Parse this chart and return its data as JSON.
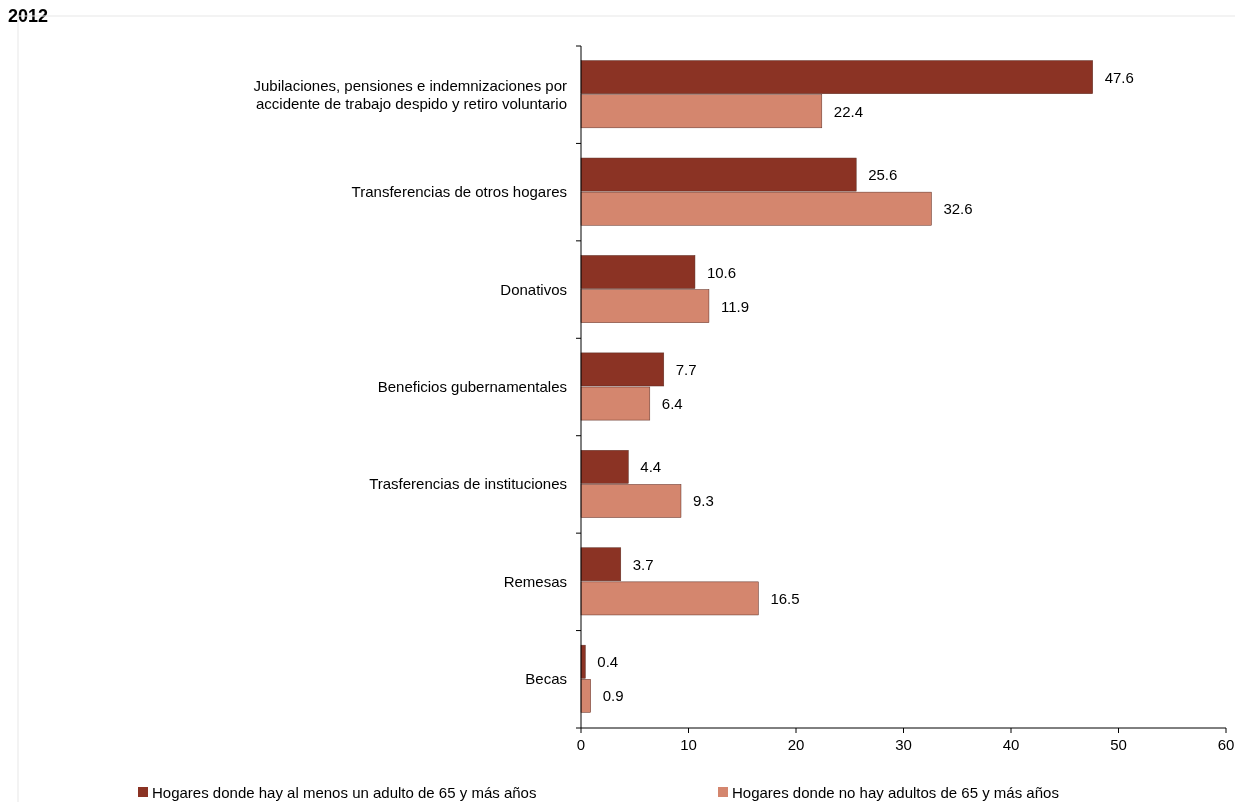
{
  "chart_data": {
    "type": "bar",
    "orientation": "horizontal",
    "title": "2012",
    "categories": [
      "Jubilaciones, pensiones e indemnizaciones por accidente de trabajo despido y retiro voluntario",
      "Transferencias de otros hogares",
      "Donativos",
      "Beneficios gubernamentales",
      "Trasferencias de instituciones",
      "Remesas",
      "Becas"
    ],
    "series": [
      {
        "name": "Hogares donde hay al menos un adulto de 65 y más años",
        "color": "#8b3324",
        "values": [
          47.6,
          25.6,
          10.6,
          7.7,
          4.4,
          3.7,
          0.4
        ]
      },
      {
        "name": "Hogares donde no hay adultos de 65 y más años",
        "color": "#d4866e",
        "values": [
          22.4,
          32.6,
          11.9,
          6.4,
          9.3,
          16.5,
          0.9
        ]
      }
    ],
    "xlim": [
      0,
      60
    ],
    "xticks": [
      0,
      10,
      20,
      30,
      40,
      50,
      60
    ],
    "data_labels": true,
    "legend": "bottom",
    "grid": false
  }
}
